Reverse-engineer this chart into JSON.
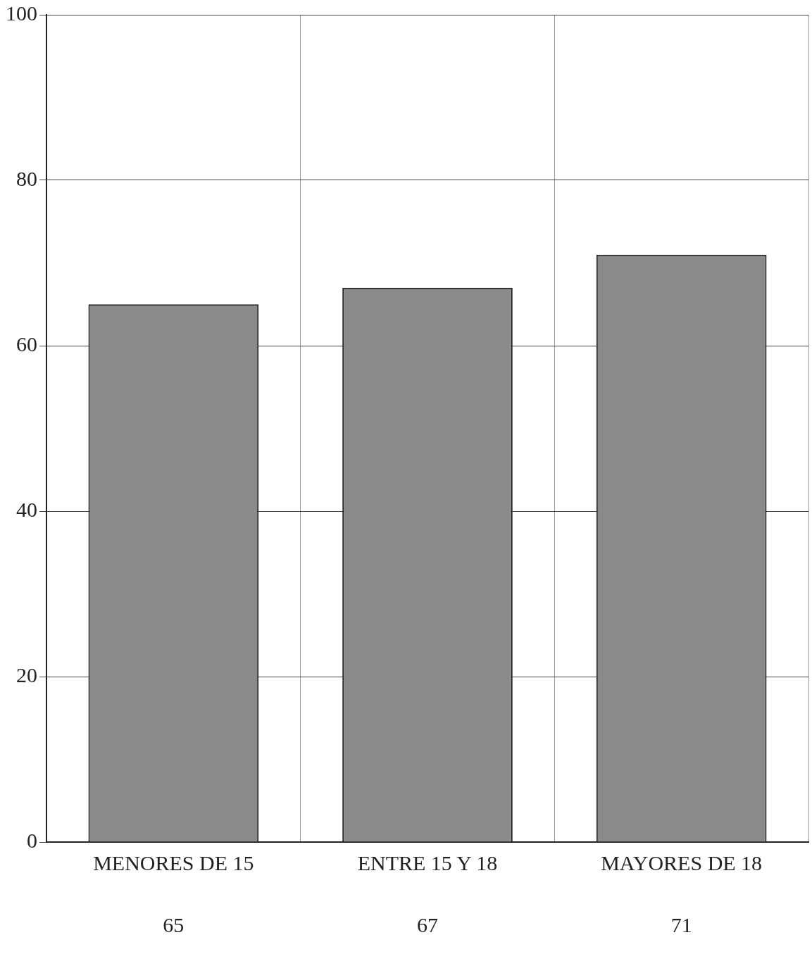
{
  "chart_data": {
    "type": "bar",
    "categories": [
      "MENORES DE 15",
      "ENTRE 15 Y 18",
      "MAYORES DE 18"
    ],
    "values": [
      65,
      67,
      71
    ],
    "color": "#8a8a8a",
    "ylim": [
      0,
      100
    ],
    "yticks": [
      0,
      20,
      40,
      60,
      80,
      100
    ],
    "grid": true,
    "data_labels": true
  }
}
